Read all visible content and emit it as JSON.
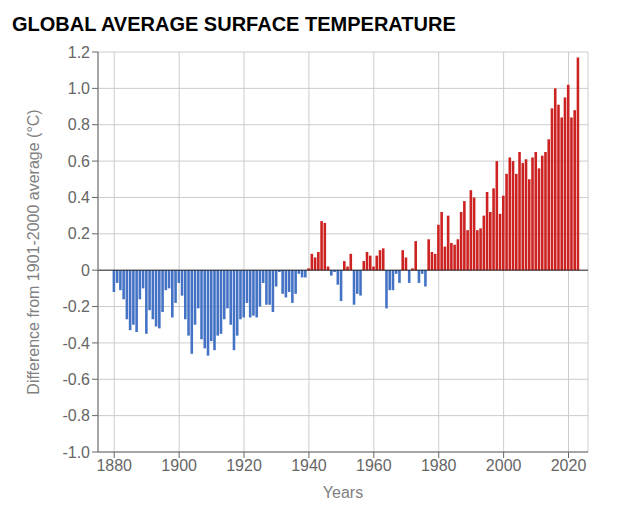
{
  "chart_data": {
    "type": "bar",
    "title": "GLOBAL AVERAGE SURFACE TEMPERATURE",
    "xlabel": "Years",
    "ylabel": "Difference from 1901-2000 average (°C)",
    "x": [
      1880,
      1881,
      1882,
      1883,
      1884,
      1885,
      1886,
      1887,
      1888,
      1889,
      1890,
      1891,
      1892,
      1893,
      1894,
      1895,
      1896,
      1897,
      1898,
      1899,
      1900,
      1901,
      1902,
      1903,
      1904,
      1905,
      1906,
      1907,
      1908,
      1909,
      1910,
      1911,
      1912,
      1913,
      1914,
      1915,
      1916,
      1917,
      1918,
      1919,
      1920,
      1921,
      1922,
      1923,
      1924,
      1925,
      1926,
      1927,
      1928,
      1929,
      1930,
      1931,
      1932,
      1933,
      1934,
      1935,
      1936,
      1937,
      1938,
      1939,
      1940,
      1941,
      1942,
      1943,
      1944,
      1945,
      1946,
      1947,
      1948,
      1949,
      1950,
      1951,
      1952,
      1953,
      1954,
      1955,
      1956,
      1957,
      1958,
      1959,
      1960,
      1961,
      1962,
      1963,
      1964,
      1965,
      1966,
      1967,
      1968,
      1969,
      1970,
      1971,
      1972,
      1973,
      1974,
      1975,
      1976,
      1977,
      1978,
      1979,
      1980,
      1981,
      1982,
      1983,
      1984,
      1985,
      1986,
      1987,
      1988,
      1989,
      1990,
      1991,
      1992,
      1993,
      1994,
      1995,
      1996,
      1997,
      1998,
      1999,
      2000,
      2001,
      2002,
      2003,
      2004,
      2005,
      2006,
      2007,
      2008,
      2009,
      2010,
      2011,
      2012,
      2013,
      2014,
      2015,
      2016,
      2017,
      2018,
      2019,
      2020,
      2021,
      2022,
      2023
    ],
    "values": [
      -0.12,
      -0.07,
      -0.11,
      -0.16,
      -0.27,
      -0.33,
      -0.3,
      -0.34,
      -0.16,
      -0.1,
      -0.35,
      -0.22,
      -0.27,
      -0.31,
      -0.32,
      -0.23,
      -0.11,
      -0.1,
      -0.26,
      -0.18,
      -0.07,
      -0.14,
      -0.27,
      -0.36,
      -0.46,
      -0.3,
      -0.21,
      -0.38,
      -0.43,
      -0.47,
      -0.39,
      -0.44,
      -0.36,
      -0.35,
      -0.27,
      -0.21,
      -0.3,
      -0.44,
      -0.36,
      -0.27,
      -0.26,
      -0.18,
      -0.26,
      -0.25,
      -0.26,
      -0.2,
      -0.07,
      -0.19,
      -0.19,
      -0.23,
      -0.09,
      -0.01,
      -0.13,
      -0.15,
      -0.12,
      -0.18,
      -0.13,
      -0.02,
      -0.04,
      -0.04,
      0.01,
      0.09,
      0.07,
      0.1,
      0.27,
      0.26,
      0.02,
      -0.03,
      -0.01,
      -0.08,
      -0.17,
      0.05,
      0.02,
      0.09,
      -0.19,
      -0.13,
      -0.14,
      0.05,
      0.1,
      0.08,
      0.02,
      0.08,
      0.11,
      0.12,
      -0.21,
      -0.11,
      -0.11,
      -0.02,
      -0.07,
      0.11,
      0.07,
      -0.07,
      0.01,
      0.16,
      -0.07,
      -0.02,
      -0.09,
      0.17,
      0.1,
      0.09,
      0.25,
      0.32,
      0.13,
      0.3,
      0.15,
      0.14,
      0.17,
      0.32,
      0.38,
      0.22,
      0.44,
      0.4,
      0.22,
      0.23,
      0.3,
      0.43,
      0.32,
      0.45,
      0.6,
      0.31,
      0.41,
      0.53,
      0.62,
      0.6,
      0.53,
      0.65,
      0.59,
      0.61,
      0.5,
      0.62,
      0.65,
      0.56,
      0.63,
      0.65,
      0.72,
      0.89,
      1.0,
      0.91,
      0.84,
      0.95,
      1.02,
      0.84,
      0.88,
      1.17
    ],
    "colors": [
      "#4472C4",
      "#4472C4",
      "#4472C4",
      "#4472C4",
      "#4472C4",
      "#4472C4",
      "#4472C4",
      "#4472C4",
      "#4472C4",
      "#4472C4",
      "#4472C4",
      "#4472C4",
      "#4472C4",
      "#4472C4",
      "#4472C4",
      "#4472C4",
      "#4472C4",
      "#4472C4",
      "#4472C4",
      "#4472C4",
      "#4472C4",
      "#4472C4",
      "#4472C4",
      "#4472C4",
      "#4472C4",
      "#4472C4",
      "#4472C4",
      "#4472C4",
      "#4472C4",
      "#4472C4",
      "#4472C4",
      "#4472C4",
      "#4472C4",
      "#4472C4",
      "#4472C4",
      "#4472C4",
      "#4472C4",
      "#4472C4",
      "#4472C4",
      "#4472C4",
      "#4472C4",
      "#4472C4",
      "#4472C4",
      "#4472C4",
      "#4472C4",
      "#4472C4",
      "#4472C4",
      "#4472C4",
      "#4472C4",
      "#4472C4",
      "#4472C4",
      "#4472C4",
      "#4472C4",
      "#4472C4",
      "#4472C4",
      "#4472C4",
      "#4472C4",
      "#4472C4",
      "#4472C4",
      "#4472C4",
      "#CC2222",
      "#CC2222",
      "#CC2222",
      "#CC2222",
      "#CC2222",
      "#CC2222",
      "#CC2222",
      "#4472C4",
      "#4472C4",
      "#4472C4",
      "#4472C4",
      "#CC2222",
      "#CC2222",
      "#CC2222",
      "#4472C4",
      "#4472C4",
      "#4472C4",
      "#CC2222",
      "#CC2222",
      "#CC2222",
      "#CC2222",
      "#CC2222",
      "#CC2222",
      "#CC2222",
      "#4472C4",
      "#4472C4",
      "#4472C4",
      "#4472C4",
      "#4472C4",
      "#CC2222",
      "#CC2222",
      "#4472C4",
      "#CC2222",
      "#CC2222",
      "#4472C4",
      "#4472C4",
      "#4472C4",
      "#CC2222",
      "#CC2222",
      "#CC2222",
      "#CC2222",
      "#CC2222",
      "#CC2222",
      "#CC2222",
      "#CC2222",
      "#CC2222",
      "#CC2222",
      "#CC2222",
      "#CC2222",
      "#CC2222",
      "#CC2222",
      "#CC2222",
      "#CC2222",
      "#CC2222",
      "#CC2222",
      "#CC2222",
      "#CC2222",
      "#CC2222",
      "#CC2222",
      "#CC2222",
      "#CC2222",
      "#CC2222",
      "#CC2222",
      "#CC2222",
      "#CC2222",
      "#CC2222",
      "#CC2222",
      "#CC2222",
      "#CC2222",
      "#CC2222",
      "#CC2222",
      "#CC2222",
      "#CC2222",
      "#CC2222",
      "#CC2222",
      "#CC2222",
      "#CC2222",
      "#CC2222",
      "#CC2222",
      "#CC2222",
      "#CC2222",
      "#CC2222",
      "#CC2222",
      "#CC2222"
    ],
    "xlim": [
      1875,
      2026
    ],
    "xticks": [
      1880,
      1900,
      1920,
      1940,
      1960,
      1980,
      2000,
      2020
    ],
    "ylim": [
      -1.0,
      1.2
    ],
    "yticks": [
      {
        "value": -1.0,
        "label": "-1.0"
      },
      -0.8,
      -0.6,
      -0.4,
      -0.2,
      0,
      0.2,
      0.4,
      0.6,
      0.8,
      {
        "value": 1.0,
        "label": "1.0"
      },
      1.2
    ],
    "grid": true
  }
}
